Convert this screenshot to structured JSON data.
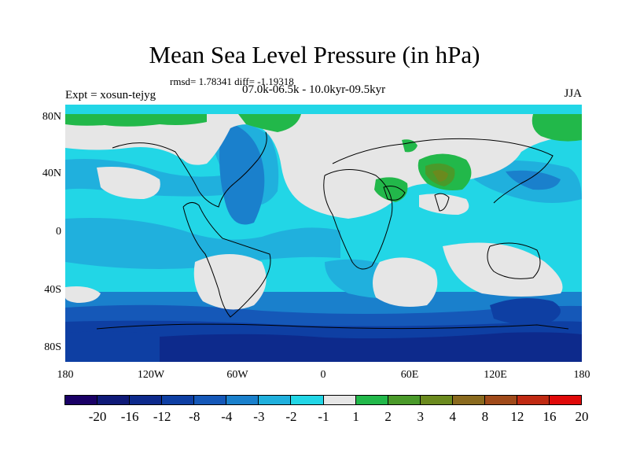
{
  "title": "Mean Sea Level Pressure (in hPa)",
  "stats": "rmsd= 1.78341 diff= -1.19318",
  "period": "07.0k-06.5k - 10.0kyr-09.5kyr",
  "expt": "Expt = xosun-tejyg",
  "season": "JJA",
  "y_ticks": [
    "80N",
    "40N",
    "0",
    "40S",
    "80S"
  ],
  "x_ticks": [
    "180",
    "120W",
    "60W",
    "0",
    "60E",
    "120E",
    "180"
  ],
  "colorbar": {
    "labels": [
      "-20",
      "-16",
      "-12",
      "-8",
      "-4",
      "-3",
      "-2",
      "-1",
      "1",
      "2",
      "3",
      "4",
      "8",
      "12",
      "16",
      "20"
    ],
    "colors": [
      "#1a0066",
      "#0f1a78",
      "#0d2a8c",
      "#0e3fa3",
      "#1558b8",
      "#1a80cc",
      "#20b0dd",
      "#22d6e6",
      "#e6e6e6",
      "#22b84a",
      "#4a9a2a",
      "#6b8a1e",
      "#8a6a1e",
      "#a04a1a",
      "#c02a12",
      "#e00a0a"
    ]
  }
}
